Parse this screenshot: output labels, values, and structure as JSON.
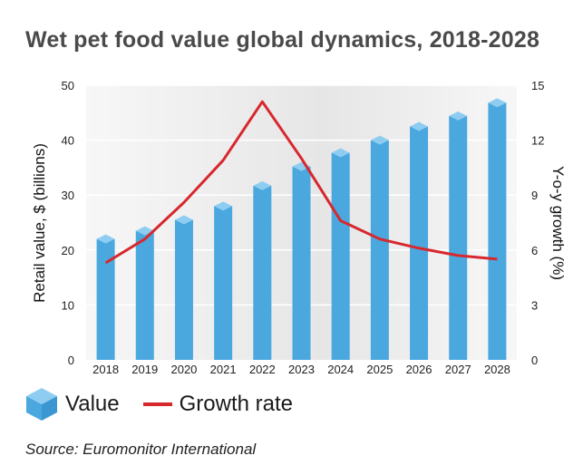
{
  "title": "Wet pet food value global dynamics, 2018-2028",
  "source": "Source: Euromonitor International",
  "legend": {
    "value_label": "Value",
    "growth_label": "Growth rate"
  },
  "colors": {
    "bar": "#4aa8df",
    "bar_top": "#8ecdf1",
    "bar_dark": "#2f8fc9",
    "line": "#d7282e",
    "grid": "#ffffff",
    "plot_bg": "#ebebeb"
  },
  "chart_data": {
    "type": "bar",
    "categories": [
      "2018",
      "2019",
      "2020",
      "2021",
      "2022",
      "2023",
      "2024",
      "2025",
      "2026",
      "2027",
      "2028"
    ],
    "series": [
      {
        "name": "Value",
        "type": "bar",
        "axis": "left",
        "values": [
          22,
          23.5,
          25.5,
          28,
          31.7,
          35.2,
          37.7,
          40,
          42.5,
          44.4,
          46.8
        ]
      },
      {
        "name": "Growth rate",
        "type": "line",
        "axis": "right",
        "values": [
          5.3,
          6.6,
          8.6,
          10.9,
          14.1,
          11,
          7.6,
          6.6,
          6.1,
          5.7,
          5.5
        ]
      }
    ],
    "ylabel": "Retail value, $ (billions)",
    "y2label": "Y-o-y growth (%)",
    "ylim": [
      0,
      50
    ],
    "y2lim": [
      0,
      15
    ],
    "yticks": [
      0,
      10,
      20,
      30,
      40,
      50
    ],
    "y2ticks": [
      0,
      3,
      6,
      9,
      12,
      15
    ],
    "grid": true,
    "legend_position": "bottom-left"
  }
}
